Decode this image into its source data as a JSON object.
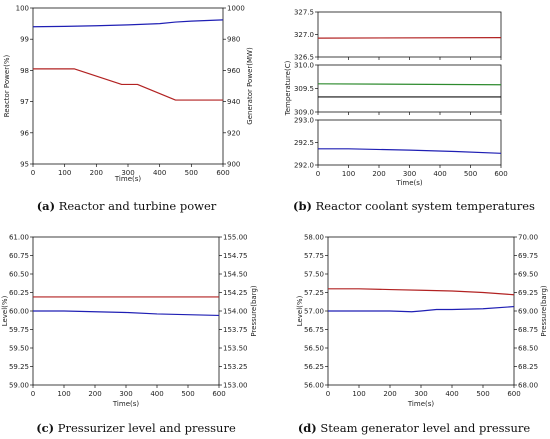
{
  "chart_data": [
    {
      "type": "line",
      "xlabel": "Time(s)",
      "ylabel_left": "Reactor Power(%)",
      "ylabel_right": "Generator Power(MW)",
      "xlim": [
        0,
        600
      ],
      "xticks": [
        0,
        100,
        200,
        300,
        400,
        500,
        600
      ],
      "ylim_left": [
        95,
        100
      ],
      "yticks_left": [
        95,
        96,
        97,
        98,
        99,
        100
      ],
      "ylim_right": [
        900,
        1000
      ],
      "yticks_right": [
        900,
        920,
        940,
        960,
        980,
        1000
      ],
      "left_axis_color": "#1f1fb4",
      "right_axis_color": "#b22222",
      "series": [
        {
          "axis": "left",
          "color": "#1f1fb4",
          "x": [
            0,
            100,
            200,
            300,
            400,
            450,
            500,
            550,
            600
          ],
          "y": [
            99.4,
            99.41,
            99.43,
            99.46,
            99.5,
            99.55,
            99.58,
            99.6,
            99.62
          ]
        },
        {
          "axis": "right",
          "color": "#b22222",
          "x": [
            0,
            130,
            280,
            330,
            450,
            470,
            600
          ],
          "y": [
            961,
            961,
            951,
            951,
            941,
            941,
            941
          ]
        }
      ],
      "caption_tag": "(a)",
      "caption_text": "Reactor and turbine power"
    },
    {
      "type": "line",
      "xlabel": "Time(s)",
      "ylabel": "Temperature(C)",
      "xlim": [
        0,
        600
      ],
      "xticks": [
        0,
        100,
        200,
        300,
        400,
        500,
        600
      ],
      "panels": [
        {
          "ylim": [
            326.5,
            327.5
          ],
          "yticks": [
            326.5,
            327.0,
            327.5
          ],
          "series": [
            {
              "color": "#b22222",
              "x": [
                0,
                600
              ],
              "y": [
                326.92,
                326.93
              ]
            }
          ]
        },
        {
          "ylim": [
            309.0,
            310.0
          ],
          "yticks": [
            309.0,
            309.5,
            310.0
          ],
          "series": [
            {
              "color": "#2e8b2e",
              "x": [
                0,
                600
              ],
              "y": [
                309.6,
                309.58
              ]
            },
            {
              "color": "#111111",
              "x": [
                0,
                600
              ],
              "y": [
                309.32,
                309.32
              ]
            }
          ]
        },
        {
          "ylim": [
            292.0,
            293.0
          ],
          "yticks": [
            292.0,
            292.5,
            293.0
          ],
          "series": [
            {
              "color": "#1f1fb4",
              "x": [
                0,
                100,
                300,
                450,
                600
              ],
              "y": [
                292.36,
                292.36,
                292.33,
                292.3,
                292.26
              ]
            }
          ]
        }
      ],
      "caption_tag": "(b)",
      "caption_text": "Reactor coolant system temperatures"
    },
    {
      "type": "line",
      "xlabel": "Time(s)",
      "ylabel_left": "Level(%)",
      "ylabel_right": "Pressure(barg)",
      "xlim": [
        0,
        600
      ],
      "xticks": [
        0,
        100,
        200,
        300,
        400,
        500,
        600
      ],
      "ylim_left": [
        59.0,
        61.0
      ],
      "yticks_left": [
        "59.00",
        "59.25",
        "59.50",
        "59.75",
        "60.00",
        "60.25",
        "60.50",
        "60.75",
        "61.00"
      ],
      "ylim_right": [
        153.0,
        155.0
      ],
      "yticks_right": [
        "153.00",
        "153.25",
        "153.50",
        "153.75",
        "154.00",
        "154.25",
        "154.50",
        "154.75",
        "155.00"
      ],
      "left_axis_color": "#1f1fb4",
      "right_axis_color": "#b22222",
      "series": [
        {
          "axis": "left",
          "color": "#1f1fb4",
          "x": [
            0,
            100,
            200,
            300,
            400,
            500,
            600
          ],
          "y": [
            60.0,
            60.0,
            59.99,
            59.98,
            59.96,
            59.95,
            59.94
          ]
        },
        {
          "axis": "right",
          "color": "#b22222",
          "x": [
            0,
            600
          ],
          "y": [
            154.19,
            154.19
          ]
        }
      ],
      "caption_tag": "(c)",
      "caption_text": "Pressurizer level and pressure"
    },
    {
      "type": "line",
      "xlabel": "Time(s)",
      "ylabel_left": "Level(%)",
      "ylabel_right": "Pressure(barg)",
      "xlim": [
        0,
        600
      ],
      "xticks": [
        0,
        100,
        200,
        300,
        400,
        500,
        600
      ],
      "ylim_left": [
        56.0,
        58.0
      ],
      "yticks_left": [
        "56.00",
        "56.25",
        "56.50",
        "56.75",
        "57.00",
        "57.25",
        "57.50",
        "57.75",
        "58.00"
      ],
      "ylim_right": [
        68.0,
        70.0
      ],
      "yticks_right": [
        "68.00",
        "68.25",
        "68.50",
        "68.75",
        "69.00",
        "69.25",
        "69.50",
        "69.75",
        "70.00"
      ],
      "left_axis_color": "#1f1fb4",
      "right_axis_color": "#b22222",
      "series": [
        {
          "axis": "left",
          "color": "#1f1fb4",
          "x": [
            0,
            100,
            200,
            270,
            300,
            350,
            400,
            500,
            600
          ],
          "y": [
            57.0,
            57.0,
            57.0,
            56.99,
            57.0,
            57.02,
            57.02,
            57.03,
            57.06
          ]
        },
        {
          "axis": "right",
          "color": "#b22222",
          "x": [
            0,
            100,
            200,
            300,
            400,
            500,
            600
          ],
          "y": [
            69.3,
            69.3,
            69.29,
            69.28,
            69.27,
            69.25,
            69.22
          ]
        }
      ],
      "caption_tag": "(d)",
      "caption_text": "Steam generator level and pressure"
    }
  ]
}
